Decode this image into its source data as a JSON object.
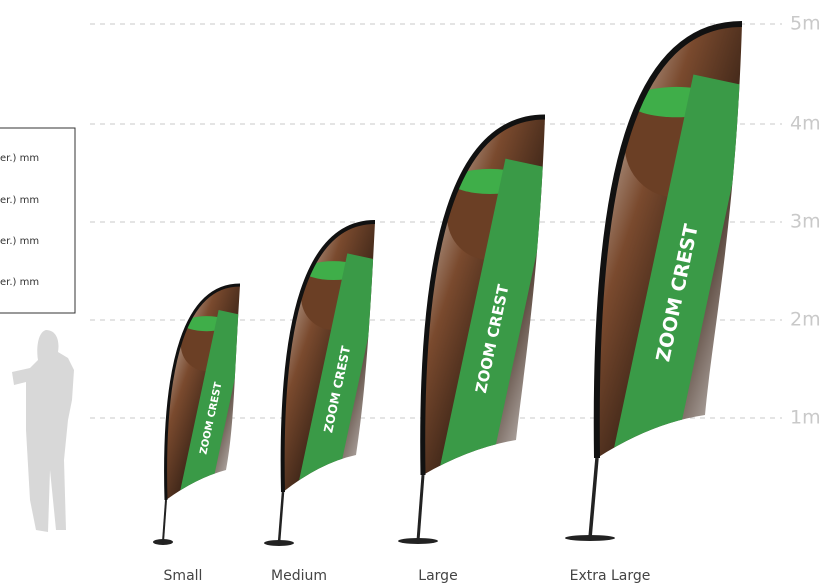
{
  "scale": {
    "labels": [
      "5m",
      "4m",
      "3m",
      "2m",
      "1m"
    ]
  },
  "spec_box": {
    "lines": [
      "er.) mm",
      "er.) mm",
      "er.) mm",
      "er.) mm"
    ]
  },
  "flags": [
    {
      "label": "Small",
      "banner": "ZOOM CREST"
    },
    {
      "label": "Medium",
      "banner": "ZOOM CREST"
    },
    {
      "label": "Large",
      "banner": "ZOOM CREST"
    },
    {
      "label": "Extra Large",
      "banner": "ZOOM CREST"
    }
  ]
}
